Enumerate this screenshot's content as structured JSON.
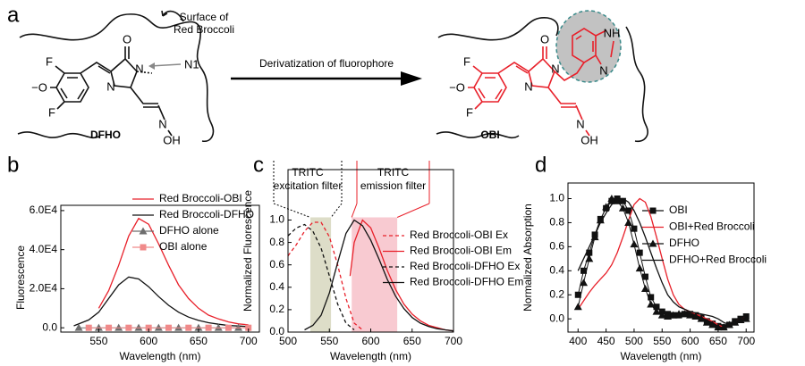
{
  "panel_labels": [
    "a",
    "b",
    "c",
    "d"
  ],
  "panel_a": {
    "left": {
      "name": "DFHO",
      "surface_label": [
        "Surface of",
        "Red Broccoli"
      ],
      "pointer_label": "N1",
      "atoms": [
        "F",
        "−O",
        "F",
        "O",
        "N",
        "N",
        "N",
        "OH"
      ]
    },
    "arrow_label": "Derivatization of fluorophore",
    "right": {
      "name": "OBI",
      "atoms": [
        "F",
        "−O",
        "F",
        "O",
        "N",
        "N",
        "N",
        "OH",
        "NH",
        "N"
      ]
    }
  },
  "chart_data": [
    {
      "type": "line",
      "x_label": "Wavelength (nm)",
      "y_label": "Fluorescence",
      "xlim": [
        512,
        711
      ],
      "xticks": [
        550,
        600,
        650,
        700
      ],
      "ylim": [
        -2200,
        62700
      ],
      "yticks": [
        {
          "value": 0,
          "label": "0.0"
        },
        {
          "value": 20000,
          "label": "2.0E4"
        },
        {
          "value": 40000,
          "label": "4.0E4"
        },
        {
          "value": 60000,
          "label": "6.0E4"
        }
      ],
      "legend": "upper right",
      "series": [
        {
          "name": "Red Broccoli-OBI",
          "color": "#e8202a",
          "x": [
            550,
            560,
            570,
            580,
            590,
            600,
            610,
            620,
            630,
            640,
            650,
            660,
            670,
            680,
            690,
            700
          ],
          "values": [
            10000,
            19000,
            32000,
            47000,
            56000,
            53000,
            43000,
            32000,
            22000,
            15000,
            10000,
            6500,
            4500,
            3000,
            2000,
            1500
          ]
        },
        {
          "name": "Red Broccoli-DFHO",
          "color": "#111111",
          "x": [
            525,
            540,
            550,
            560,
            570,
            580,
            590,
            600,
            610,
            620,
            630,
            640,
            650,
            660,
            670,
            680,
            690,
            700
          ],
          "values": [
            1000,
            4000,
            8000,
            15000,
            22000,
            26000,
            25000,
            21000,
            16000,
            11500,
            8000,
            5500,
            3800,
            2600,
            1800,
            1200,
            900,
            600
          ]
        },
        {
          "name": "DFHO alone",
          "color": "#6e6e6e",
          "marker": "triangle",
          "line": true,
          "x": [
            530,
            550,
            570,
            590,
            610,
            630,
            650,
            670,
            690
          ],
          "values": [
            0,
            0,
            0,
            0,
            0,
            0,
            0,
            0,
            0
          ]
        },
        {
          "name": "OBI alone",
          "color": "#f08a8a",
          "marker": "square",
          "line": true,
          "x": [
            540,
            560,
            580,
            600,
            620,
            640,
            660,
            680,
            700
          ],
          "values": [
            0,
            0,
            0,
            0,
            0,
            0,
            0,
            0,
            0
          ]
        }
      ]
    },
    {
      "type": "line",
      "x_label": "Wavelength (nm)",
      "y_label": "Normalized Fluorescence",
      "xlim": [
        500,
        700
      ],
      "xticks": [
        500,
        550,
        600,
        650,
        700
      ],
      "ylim": [
        0,
        1.45
      ],
      "yticks": [
        {
          "value": 0,
          "label": "0.0"
        },
        0.2,
        0.4,
        0.6,
        0.8,
        {
          "value": 1,
          "label": "1.0"
        }
      ],
      "legend": "right",
      "filters": [
        {
          "lines": [
            "TRITC",
            "excitation filter"
          ],
          "range": [
            527,
            552
          ],
          "color": "#d9d9c2"
        },
        {
          "lines": [
            "TRITC",
            "emission filter"
          ],
          "range": [
            577,
            632
          ],
          "color": "#f7c4cc"
        }
      ],
      "series": [
        {
          "name": "Red Broccoli-OBI Ex",
          "color": "#e8202a",
          "dash": true,
          "x": [
            500,
            510,
            520,
            530,
            540,
            550,
            560,
            570,
            580,
            590
          ],
          "values": [
            0.68,
            0.78,
            0.9,
            0.98,
            0.98,
            0.85,
            0.6,
            0.3,
            0.08,
            0.02
          ]
        },
        {
          "name": "Red Broccoli-OBI Em",
          "color": "#e8202a",
          "x": [
            575,
            580,
            590,
            600,
            610,
            620,
            630,
            640,
            650,
            660,
            670,
            680,
            690,
            700
          ],
          "values": [
            0.5,
            0.8,
            1.0,
            0.93,
            0.75,
            0.55,
            0.38,
            0.25,
            0.16,
            0.1,
            0.06,
            0.04,
            0.02,
            0.01
          ]
        },
        {
          "name": "Red Broccoli-DFHO Ex",
          "color": "#111111",
          "dash": true,
          "x": [
            500,
            510,
            520,
            530,
            540,
            550,
            560,
            570,
            580
          ],
          "values": [
            0.86,
            0.93,
            0.96,
            0.9,
            0.75,
            0.5,
            0.25,
            0.08,
            0.02
          ]
        },
        {
          "name": "Red Broccoli-DFHO Em",
          "color": "#111111",
          "x": [
            520,
            530,
            540,
            550,
            560,
            570,
            580,
            590,
            600,
            610,
            620,
            630,
            640,
            650,
            660,
            670,
            680,
            690,
            700
          ],
          "values": [
            0.02,
            0.06,
            0.15,
            0.35,
            0.62,
            0.88,
            1.0,
            0.95,
            0.82,
            0.65,
            0.47,
            0.32,
            0.21,
            0.13,
            0.08,
            0.05,
            0.03,
            0.02,
            0.01
          ]
        }
      ]
    },
    {
      "type": "line",
      "x_label": "Wavelength (nm)",
      "y_label": "Normalized Absorption",
      "xlim": [
        382,
        714
      ],
      "xticks": [
        400,
        450,
        500,
        550,
        600,
        650,
        700
      ],
      "ylim": [
        -0.11,
        1.13
      ],
      "yticks": [
        {
          "value": 0,
          "label": "0.0"
        },
        0.2,
        0.4,
        0.6,
        0.8,
        {
          "value": 1,
          "label": "1.0"
        }
      ],
      "legend": "right",
      "series": [
        {
          "name": "OBI",
          "color": "#111111",
          "marker": "square",
          "line": true,
          "x": [
            400,
            410,
            420,
            430,
            440,
            450,
            460,
            470,
            480,
            490,
            500,
            510,
            520,
            530,
            540,
            550,
            560,
            570,
            580,
            590,
            600,
            610,
            620,
            630,
            640,
            650,
            660,
            670,
            680,
            690,
            700
          ],
          "values": [
            0.2,
            0.4,
            0.55,
            0.7,
            0.83,
            0.92,
            0.98,
            1.0,
            0.98,
            0.9,
            0.75,
            0.55,
            0.35,
            0.18,
            0.1,
            0.06,
            0.04,
            0.03,
            0.03,
            0.04,
            0.04,
            0.03,
            0.01,
            -0.02,
            -0.04,
            -0.06,
            -0.07,
            -0.05,
            -0.02,
            0.0,
            0.02
          ]
        },
        {
          "name": "OBI+Red Broccoli",
          "color": "#e8202a",
          "x": [
            400,
            410,
            420,
            430,
            440,
            450,
            460,
            470,
            480,
            490,
            500,
            510,
            520,
            530,
            540,
            550,
            560,
            570,
            580,
            590,
            600,
            610,
            620,
            630,
            640,
            650,
            660,
            670,
            680,
            690,
            700
          ],
          "values": [
            0.08,
            0.15,
            0.22,
            0.28,
            0.33,
            0.38,
            0.45,
            0.55,
            0.68,
            0.82,
            0.95,
            1.0,
            0.97,
            0.85,
            0.68,
            0.5,
            0.33,
            0.2,
            0.12,
            0.08,
            0.06,
            0.04,
            0.02,
            0.0,
            -0.02,
            -0.05,
            -0.07,
            -0.06,
            -0.03,
            0.0,
            0.01
          ]
        },
        {
          "name": "DFHO",
          "color": "#111111",
          "marker": "triangle",
          "line": true,
          "x": [
            400,
            410,
            420,
            430,
            440,
            450,
            460,
            470,
            480,
            490,
            500,
            510,
            520,
            530,
            540,
            550,
            560,
            570,
            580,
            590,
            600,
            610,
            620,
            630,
            640,
            650,
            660,
            670,
            680,
            690,
            700
          ],
          "values": [
            0.1,
            0.3,
            0.5,
            0.68,
            0.82,
            0.93,
            1.0,
            0.98,
            0.92,
            0.8,
            0.62,
            0.42,
            0.25,
            0.12,
            0.06,
            0.03,
            0.02,
            0.03,
            0.04,
            0.04,
            0.03,
            0.02,
            0.0,
            -0.03,
            -0.05,
            -0.07,
            -0.07,
            -0.05,
            -0.03,
            -0.01,
            0.0
          ]
        },
        {
          "name": "DFHO+Red Broccoli",
          "color": "#111111",
          "x": [
            400,
            410,
            420,
            430,
            440,
            450,
            460,
            470,
            480,
            490,
            500,
            510,
            520,
            530,
            540,
            550,
            560,
            570,
            580,
            590,
            600,
            610,
            620,
            630,
            640,
            650,
            660,
            670,
            680,
            690,
            700
          ],
          "values": [
            0.4,
            0.5,
            0.6,
            0.7,
            0.8,
            0.88,
            0.95,
            0.99,
            1.0,
            0.97,
            0.9,
            0.8,
            0.68,
            0.55,
            0.42,
            0.3,
            0.2,
            0.14,
            0.1,
            0.08,
            0.06,
            0.05,
            0.04,
            0.03,
            0.02,
            0.0,
            -0.03,
            -0.05,
            -0.03,
            0.0,
            0.01
          ]
        }
      ]
    }
  ]
}
